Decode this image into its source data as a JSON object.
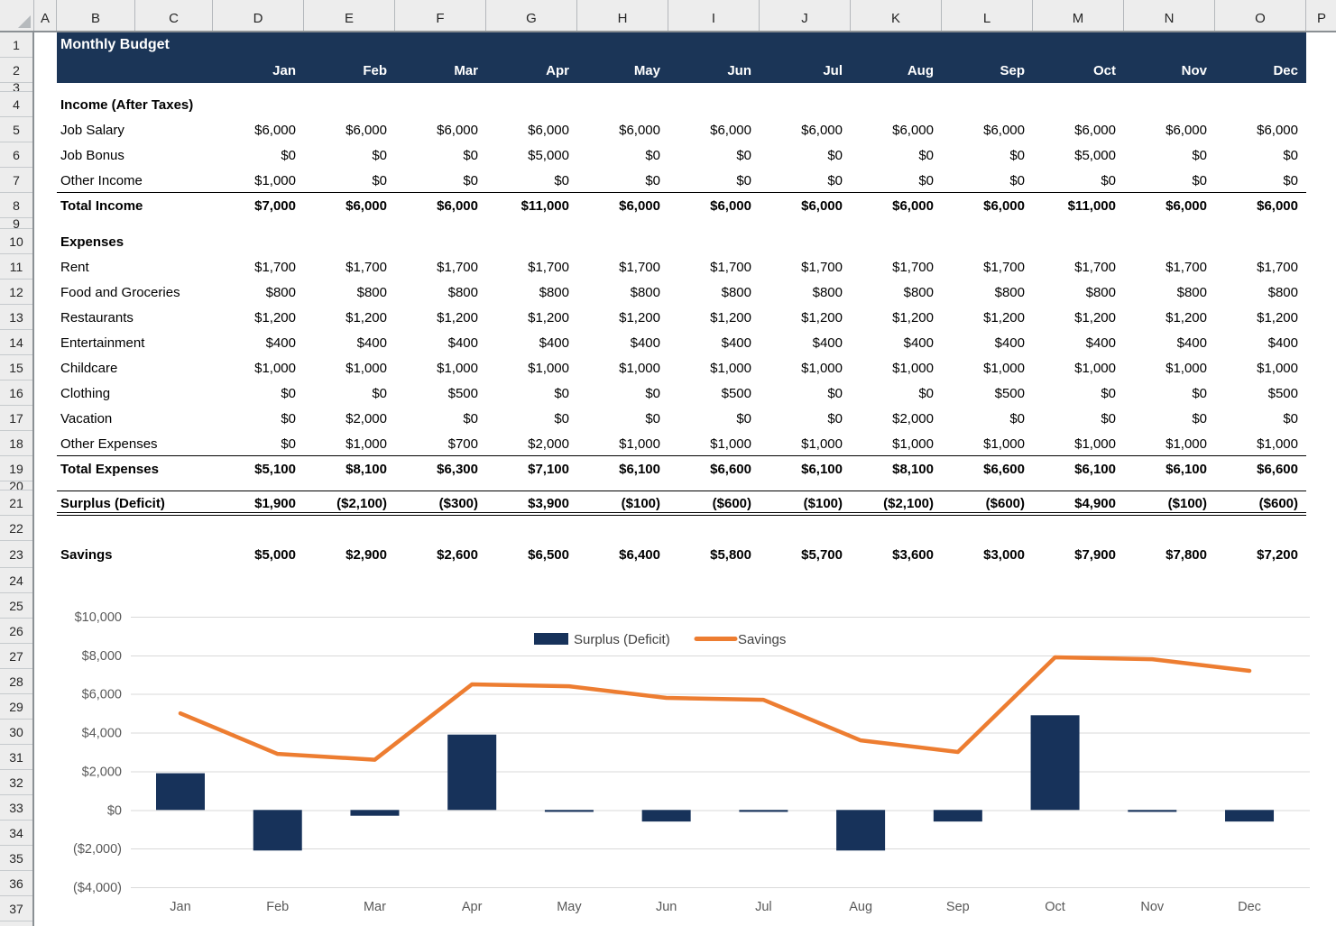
{
  "sheet": {
    "column_headers": [
      "A",
      "B",
      "C",
      "D",
      "E",
      "F",
      "G",
      "H",
      "I",
      "J",
      "K",
      "L",
      "M",
      "N",
      "O",
      "P"
    ],
    "row_numbers": [
      "1",
      "2",
      "3",
      "4",
      "5",
      "6",
      "7",
      "8",
      "9",
      "10",
      "11",
      "12",
      "13",
      "14",
      "15",
      "16",
      "17",
      "18",
      "19",
      "20",
      "21",
      "22",
      "23",
      "24",
      "25",
      "26",
      "27",
      "28",
      "29",
      "30",
      "31",
      "32",
      "33",
      "34",
      "35",
      "36",
      "37"
    ],
    "title": "Monthly Budget",
    "months": [
      "Jan",
      "Feb",
      "Mar",
      "Apr",
      "May",
      "Jun",
      "Jul",
      "Aug",
      "Sep",
      "Oct",
      "Nov",
      "Dec"
    ]
  },
  "table": {
    "rows": [
      {
        "row": 4,
        "kind": "section",
        "label": "Income (After Taxes)",
        "values": []
      },
      {
        "row": 5,
        "kind": "data",
        "label": "Job Salary",
        "values": [
          "$6,000",
          "$6,000",
          "$6,000",
          "$6,000",
          "$6,000",
          "$6,000",
          "$6,000",
          "$6,000",
          "$6,000",
          "$6,000",
          "$6,000",
          "$6,000"
        ]
      },
      {
        "row": 6,
        "kind": "data",
        "label": "Job Bonus",
        "values": [
          "$0",
          "$0",
          "$0",
          "$5,000",
          "$0",
          "$0",
          "$0",
          "$0",
          "$0",
          "$5,000",
          "$0",
          "$0"
        ]
      },
      {
        "row": 7,
        "kind": "data",
        "label": "Other Income",
        "values": [
          "$1,000",
          "$0",
          "$0",
          "$0",
          "$0",
          "$0",
          "$0",
          "$0",
          "$0",
          "$0",
          "$0",
          "$0"
        ],
        "underline": true
      },
      {
        "row": 8,
        "kind": "total",
        "label": "Total Income",
        "values": [
          "$7,000",
          "$6,000",
          "$6,000",
          "$11,000",
          "$6,000",
          "$6,000",
          "$6,000",
          "$6,000",
          "$6,000",
          "$11,000",
          "$6,000",
          "$6,000"
        ]
      },
      {
        "row": 10,
        "kind": "section",
        "label": "Expenses",
        "values": []
      },
      {
        "row": 11,
        "kind": "data",
        "label": "Rent",
        "values": [
          "$1,700",
          "$1,700",
          "$1,700",
          "$1,700",
          "$1,700",
          "$1,700",
          "$1,700",
          "$1,700",
          "$1,700",
          "$1,700",
          "$1,700",
          "$1,700"
        ]
      },
      {
        "row": 12,
        "kind": "data",
        "label": "Food and Groceries",
        "values": [
          "$800",
          "$800",
          "$800",
          "$800",
          "$800",
          "$800",
          "$800",
          "$800",
          "$800",
          "$800",
          "$800",
          "$800"
        ]
      },
      {
        "row": 13,
        "kind": "data",
        "label": "Restaurants",
        "values": [
          "$1,200",
          "$1,200",
          "$1,200",
          "$1,200",
          "$1,200",
          "$1,200",
          "$1,200",
          "$1,200",
          "$1,200",
          "$1,200",
          "$1,200",
          "$1,200"
        ]
      },
      {
        "row": 14,
        "kind": "data",
        "label": "Entertainment",
        "values": [
          "$400",
          "$400",
          "$400",
          "$400",
          "$400",
          "$400",
          "$400",
          "$400",
          "$400",
          "$400",
          "$400",
          "$400"
        ]
      },
      {
        "row": 15,
        "kind": "data",
        "label": "Childcare",
        "values": [
          "$1,000",
          "$1,000",
          "$1,000",
          "$1,000",
          "$1,000",
          "$1,000",
          "$1,000",
          "$1,000",
          "$1,000",
          "$1,000",
          "$1,000",
          "$1,000"
        ]
      },
      {
        "row": 16,
        "kind": "data",
        "label": "Clothing",
        "values": [
          "$0",
          "$0",
          "$500",
          "$0",
          "$0",
          "$500",
          "$0",
          "$0",
          "$500",
          "$0",
          "$0",
          "$500"
        ]
      },
      {
        "row": 17,
        "kind": "data",
        "label": "Vacation",
        "values": [
          "$0",
          "$2,000",
          "$0",
          "$0",
          "$0",
          "$0",
          "$0",
          "$2,000",
          "$0",
          "$0",
          "$0",
          "$0"
        ]
      },
      {
        "row": 18,
        "kind": "data",
        "label": "Other Expenses",
        "values": [
          "$0",
          "$1,000",
          "$700",
          "$2,000",
          "$1,000",
          "$1,000",
          "$1,000",
          "$1,000",
          "$1,000",
          "$1,000",
          "$1,000",
          "$1,000"
        ],
        "underline": true
      },
      {
        "row": 19,
        "kind": "total",
        "label": "Total Expenses",
        "values": [
          "$5,100",
          "$8,100",
          "$6,300",
          "$7,100",
          "$6,100",
          "$6,600",
          "$6,100",
          "$8,100",
          "$6,600",
          "$6,100",
          "$6,100",
          "$6,600"
        ]
      },
      {
        "row": 21,
        "kind": "surplus",
        "label": "Surplus (Deficit)",
        "values": [
          "$1,900",
          "($2,100)",
          "($300)",
          "$3,900",
          "($100)",
          "($600)",
          "($100)",
          "($2,100)",
          "($600)",
          "$4,900",
          "($100)",
          "($600)"
        ]
      },
      {
        "row": 23,
        "kind": "savings",
        "label": "Savings",
        "values": [
          "$5,000",
          "$2,900",
          "$2,600",
          "$6,500",
          "$6,400",
          "$5,800",
          "$5,700",
          "$3,600",
          "$3,000",
          "$7,900",
          "$7,800",
          "$7,200"
        ]
      }
    ]
  },
  "chart_data": {
    "type": "bar",
    "subtype": "bar+line combo",
    "categories": [
      "Jan",
      "Feb",
      "Mar",
      "Apr",
      "May",
      "Jun",
      "Jul",
      "Aug",
      "Sep",
      "Oct",
      "Nov",
      "Dec"
    ],
    "series": [
      {
        "name": "Surplus (Deficit)",
        "type": "bar",
        "color": "#17325A",
        "values": [
          1900,
          -2100,
          -300,
          3900,
          -100,
          -600,
          -100,
          -2100,
          -600,
          4900,
          -100,
          -600
        ]
      },
      {
        "name": "Savings",
        "type": "line",
        "color": "#ED7D31",
        "values": [
          5000,
          2900,
          2600,
          6500,
          6400,
          5800,
          5700,
          3600,
          3000,
          7900,
          7800,
          7200
        ]
      }
    ],
    "title": "",
    "xlabel": "",
    "ylabel": "",
    "ylim": [
      -4000,
      10000
    ],
    "ytick_step": 2000,
    "ytick_values": [
      10000,
      8000,
      6000,
      4000,
      2000,
      0,
      -2000,
      -4000
    ],
    "ytick_labels": [
      "$10,000",
      "$8,000",
      "$6,000",
      "$4,000",
      "$2,000",
      "$0",
      "($2,000)",
      "($4,000)"
    ],
    "grid": true,
    "legend_position": "top-center",
    "colors": {
      "gridline": "#D9D9D9",
      "axis_text": "#595959",
      "legend_text": "#404040"
    }
  }
}
